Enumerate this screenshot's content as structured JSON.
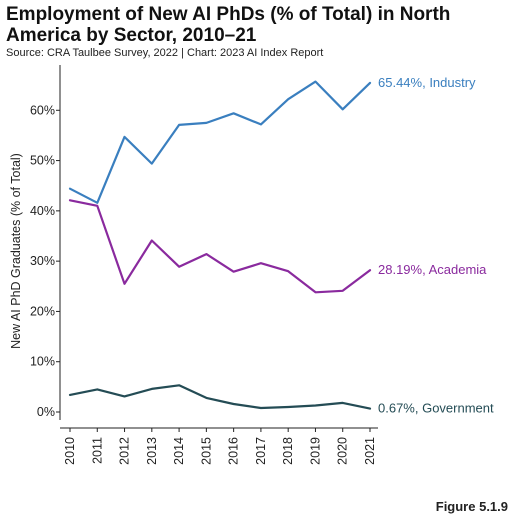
{
  "title": "Employment of New AI PhDs (% of Total) in North America by Sector, 2010–21",
  "source": "Source: CRA Taulbee Survey, 2022 | Chart: 2023 AI Index Report",
  "figure_label": "Figure 5.1.9",
  "chart_data": {
    "type": "line",
    "ylabel": "New AI PhD Graduates (% of Total)",
    "ylim": [
      0,
      70
    ],
    "y_ticks": [
      0,
      10,
      20,
      30,
      40,
      50,
      60
    ],
    "y_tick_labels": [
      "0%",
      "10%",
      "20%",
      "30%",
      "40%",
      "50%",
      "60%"
    ],
    "x": [
      "2010",
      "2011",
      "2012",
      "2013",
      "2014",
      "2015",
      "2016",
      "2017",
      "2018",
      "2019",
      "2020",
      "2021"
    ],
    "grid": false,
    "series": [
      {
        "name": "Industry",
        "color": "#3a7fbf",
        "end_label": "65.44%, Industry",
        "values": [
          44.4,
          41.6,
          54.7,
          49.4,
          57.1,
          57.5,
          59.4,
          57.2,
          62.2,
          65.7,
          60.2,
          65.44
        ]
      },
      {
        "name": "Academia",
        "color": "#8a2a9e",
        "end_label": "28.19%, Academia",
        "values": [
          42.1,
          41.0,
          25.5,
          34.1,
          28.9,
          31.4,
          27.9,
          29.6,
          28.0,
          23.8,
          24.1,
          28.19
        ]
      },
      {
        "name": "Government",
        "color": "#244c55",
        "end_label": "0.67%, Government",
        "values": [
          3.4,
          4.5,
          3.1,
          4.6,
          5.3,
          2.8,
          1.6,
          0.8,
          1.0,
          1.3,
          1.8,
          0.67
        ]
      }
    ]
  }
}
